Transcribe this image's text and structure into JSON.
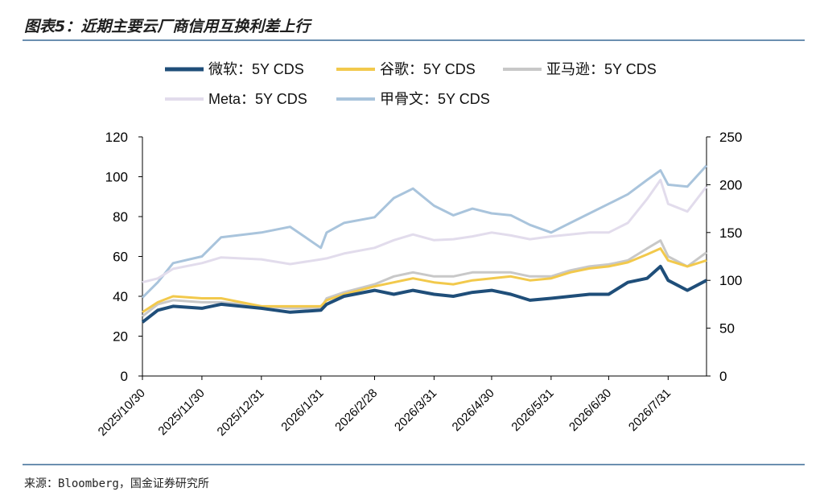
{
  "figure": {
    "title": "图表5：近期主要云厂商信用互换利差上行",
    "source": "来源：Bloomberg，国金证券研究所"
  },
  "chart_data": {
    "type": "line",
    "left_axis": {
      "ylim": [
        0,
        120
      ],
      "ticks": [
        0,
        20,
        40,
        60,
        80,
        100,
        120
      ]
    },
    "right_axis": {
      "ylim": [
        0,
        250
      ],
      "ticks": [
        0,
        50,
        100,
        150,
        200,
        250
      ]
    },
    "x_tick_labels": [
      "2025/10/30",
      "2025/11/30",
      "2025/12/31",
      "2026/1/31",
      "2026/2/28",
      "2026/3/31",
      "2026/4/30",
      "2026/5/31",
      "2026/6/30",
      "2026/7/31"
    ],
    "legend_position": "top",
    "series": [
      {
        "name": "微软：5Y CDS",
        "axis": "left",
        "color": "#1f4e79",
        "points": [
          [
            "2025/10/30",
            27
          ],
          [
            "2025/11/7",
            33
          ],
          [
            "2025/11/15",
            35
          ],
          [
            "2025/11/30",
            34
          ],
          [
            "2025/12/10",
            36
          ],
          [
            "2025/12/31",
            34
          ],
          [
            "2026/1/15",
            32
          ],
          [
            "2026/1/31",
            33
          ],
          [
            "2026/2/3",
            36
          ],
          [
            "2026/2/12",
            40
          ],
          [
            "2026/2/28",
            43
          ],
          [
            "2026/3/10",
            41
          ],
          [
            "2026/3/20",
            43
          ],
          [
            "2026/3/31",
            41
          ],
          [
            "2026/4/10",
            40
          ],
          [
            "2026/4/20",
            42
          ],
          [
            "2026/4/30",
            43
          ],
          [
            "2026/5/10",
            41
          ],
          [
            "2026/5/20",
            38
          ],
          [
            "2026/5/31",
            39
          ],
          [
            "2026/6/10",
            40
          ],
          [
            "2026/6/20",
            41
          ],
          [
            "2026/6/30",
            41
          ],
          [
            "2026/7/10",
            47
          ],
          [
            "2026/7/20",
            49
          ],
          [
            "2026/7/27",
            55
          ],
          [
            "2026/7/31",
            48
          ],
          [
            "2026/8/10",
            43
          ],
          [
            "2026/8/20",
            48
          ]
        ]
      },
      {
        "name": "谷歌：5Y CDS",
        "axis": "left",
        "color": "#f2c94c",
        "points": [
          [
            "2025/10/30",
            32
          ],
          [
            "2025/11/7",
            37
          ],
          [
            "2025/11/15",
            40
          ],
          [
            "2025/11/30",
            39
          ],
          [
            "2025/12/10",
            39
          ],
          [
            "2025/12/31",
            35
          ],
          [
            "2026/1/15",
            35
          ],
          [
            "2026/1/31",
            35
          ],
          [
            "2026/2/3",
            38
          ],
          [
            "2026/2/12",
            41
          ],
          [
            "2026/2/28",
            45
          ],
          [
            "2026/3/10",
            47
          ],
          [
            "2026/3/20",
            49
          ],
          [
            "2026/3/31",
            47
          ],
          [
            "2026/4/10",
            46
          ],
          [
            "2026/4/20",
            48
          ],
          [
            "2026/4/30",
            49
          ],
          [
            "2026/5/10",
            50
          ],
          [
            "2026/5/20",
            48
          ],
          [
            "2026/5/31",
            49
          ],
          [
            "2026/6/10",
            52
          ],
          [
            "2026/6/20",
            54
          ],
          [
            "2026/6/30",
            55
          ],
          [
            "2026/7/10",
            57
          ],
          [
            "2026/7/20",
            61
          ],
          [
            "2026/7/27",
            64
          ],
          [
            "2026/7/31",
            58
          ],
          [
            "2026/8/10",
            55
          ],
          [
            "2026/8/20",
            58
          ]
        ]
      },
      {
        "name": "亚马逊：5Y CDS",
        "axis": "left",
        "color": "#c8c8c8",
        "points": [
          [
            "2025/10/30",
            30
          ],
          [
            "2025/11/7",
            36
          ],
          [
            "2025/11/15",
            38
          ],
          [
            "2025/11/30",
            37
          ],
          [
            "2025/12/10",
            37
          ],
          [
            "2025/12/31",
            35
          ],
          [
            "2026/1/15",
            34
          ],
          [
            "2026/1/31",
            34
          ],
          [
            "2026/2/3",
            39
          ],
          [
            "2026/2/12",
            42
          ],
          [
            "2026/2/28",
            46
          ],
          [
            "2026/3/10",
            50
          ],
          [
            "2026/3/20",
            52
          ],
          [
            "2026/3/31",
            50
          ],
          [
            "2026/4/10",
            50
          ],
          [
            "2026/4/20",
            52
          ],
          [
            "2026/4/30",
            52
          ],
          [
            "2026/5/10",
            52
          ],
          [
            "2026/5/20",
            50
          ],
          [
            "2026/5/31",
            50
          ],
          [
            "2026/6/10",
            53
          ],
          [
            "2026/6/20",
            55
          ],
          [
            "2026/6/30",
            56
          ],
          [
            "2026/7/10",
            58
          ],
          [
            "2026/7/20",
            64
          ],
          [
            "2026/7/27",
            68
          ],
          [
            "2026/7/31",
            60
          ],
          [
            "2026/8/10",
            55
          ],
          [
            "2026/8/20",
            62
          ]
        ]
      },
      {
        "name": "Meta：5Y CDS",
        "axis": "right",
        "color": "#e2dcec",
        "points": [
          [
            "2025/10/30",
            98
          ],
          [
            "2025/11/7",
            102
          ],
          [
            "2025/11/15",
            112
          ],
          [
            "2025/11/30",
            118
          ],
          [
            "2025/12/10",
            124
          ],
          [
            "2025/12/31",
            122
          ],
          [
            "2026/1/15",
            117
          ],
          [
            "2026/1/31",
            122
          ],
          [
            "2026/2/3",
            123
          ],
          [
            "2026/2/12",
            128
          ],
          [
            "2026/2/28",
            134
          ],
          [
            "2026/3/10",
            142
          ],
          [
            "2026/3/20",
            148
          ],
          [
            "2026/3/31",
            142
          ],
          [
            "2026/4/10",
            143
          ],
          [
            "2026/4/20",
            146
          ],
          [
            "2026/4/30",
            150
          ],
          [
            "2026/5/10",
            147
          ],
          [
            "2026/5/20",
            143
          ],
          [
            "2026/5/31",
            146
          ],
          [
            "2026/6/10",
            148
          ],
          [
            "2026/6/20",
            150
          ],
          [
            "2026/6/30",
            150
          ],
          [
            "2026/7/10",
            160
          ],
          [
            "2026/7/20",
            185
          ],
          [
            "2026/7/27",
            205
          ],
          [
            "2026/7/31",
            180
          ],
          [
            "2026/8/10",
            172
          ],
          [
            "2026/8/20",
            198
          ]
        ]
      },
      {
        "name": "甲骨文：5Y CDS",
        "axis": "right",
        "color": "#a9c4dc",
        "points": [
          [
            "2025/10/30",
            82
          ],
          [
            "2025/11/7",
            98
          ],
          [
            "2025/11/15",
            118
          ],
          [
            "2025/11/30",
            125
          ],
          [
            "2025/12/10",
            145
          ],
          [
            "2025/12/31",
            150
          ],
          [
            "2026/1/15",
            156
          ],
          [
            "2026/1/31",
            134
          ],
          [
            "2026/2/3",
            150
          ],
          [
            "2026/2/12",
            160
          ],
          [
            "2026/2/28",
            166
          ],
          [
            "2026/3/10",
            186
          ],
          [
            "2026/3/20",
            196
          ],
          [
            "2026/3/31",
            178
          ],
          [
            "2026/4/10",
            168
          ],
          [
            "2026/4/20",
            175
          ],
          [
            "2026/4/30",
            170
          ],
          [
            "2026/5/10",
            168
          ],
          [
            "2026/5/20",
            158
          ],
          [
            "2026/5/31",
            150
          ],
          [
            "2026/6/10",
            160
          ],
          [
            "2026/6/20",
            170
          ],
          [
            "2026/6/30",
            180
          ],
          [
            "2026/7/10",
            190
          ],
          [
            "2026/7/20",
            205
          ],
          [
            "2026/7/27",
            215
          ],
          [
            "2026/7/31",
            200
          ],
          [
            "2026/8/10",
            198
          ],
          [
            "2026/8/20",
            220
          ]
        ]
      }
    ]
  }
}
